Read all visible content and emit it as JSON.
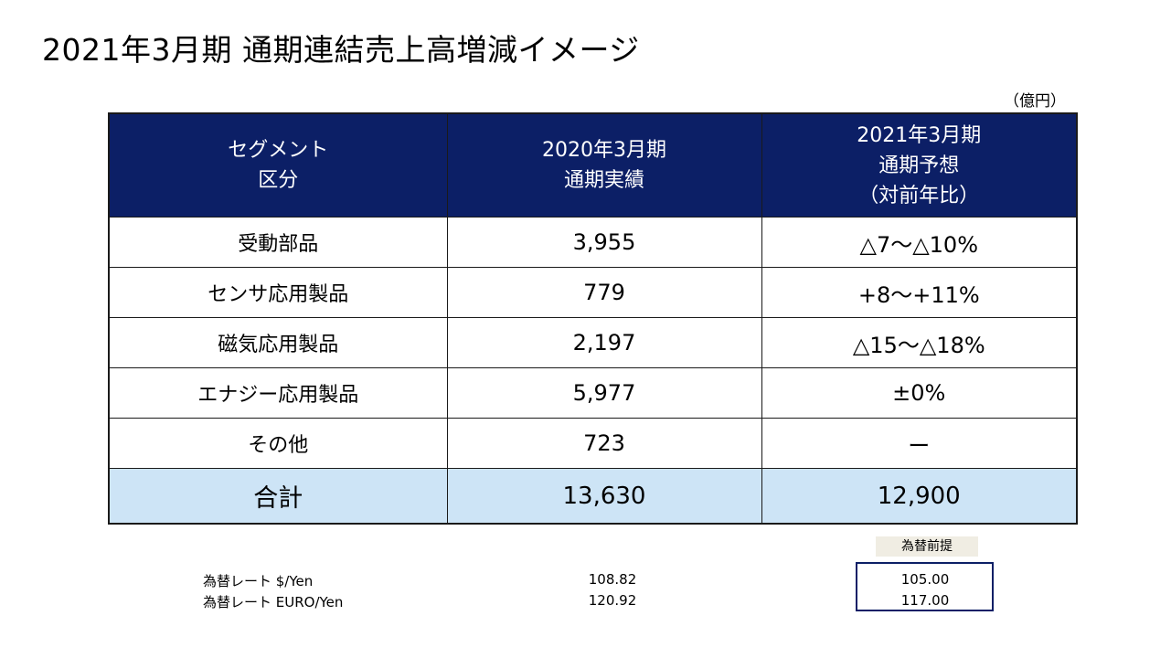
{
  "title": "2021年3月期 通期連結売上高増減イメージ",
  "unit": "（億円）",
  "table": {
    "headers": [
      [
        "セグメント",
        "区分"
      ],
      [
        "2020年3月期",
        "通期実績"
      ],
      [
        "2021年3月期",
        "通期予想",
        "（対前年比）"
      ]
    ],
    "rows": [
      {
        "segment": "受動部品",
        "actual": "3,955",
        "forecast": "△7～△10%"
      },
      {
        "segment": "センサ応用製品",
        "actual": "779",
        "forecast": "+8～+11%"
      },
      {
        "segment": "磁気応用製品",
        "actual": "2,197",
        "forecast": "△15～△18%"
      },
      {
        "segment": "エナジー応用製品",
        "actual": "5,977",
        "forecast": "±0%"
      },
      {
        "segment": "その他",
        "actual": "723",
        "forecast": "ー"
      }
    ],
    "total": {
      "segment": "合計",
      "actual": "13,630",
      "forecast": "12,900"
    }
  },
  "fx": {
    "note": "為替前提",
    "rows": [
      {
        "label": "為替レート $/Yen",
        "actual": "108.82",
        "assumption": "105.00"
      },
      {
        "label": "為替レート EURO/Yen",
        "actual": "120.92",
        "assumption": "117.00"
      }
    ]
  },
  "colors": {
    "header_bg": "#0c1f66",
    "total_row_bg": "#cde4f6",
    "note_bg": "#f0ede3"
  }
}
